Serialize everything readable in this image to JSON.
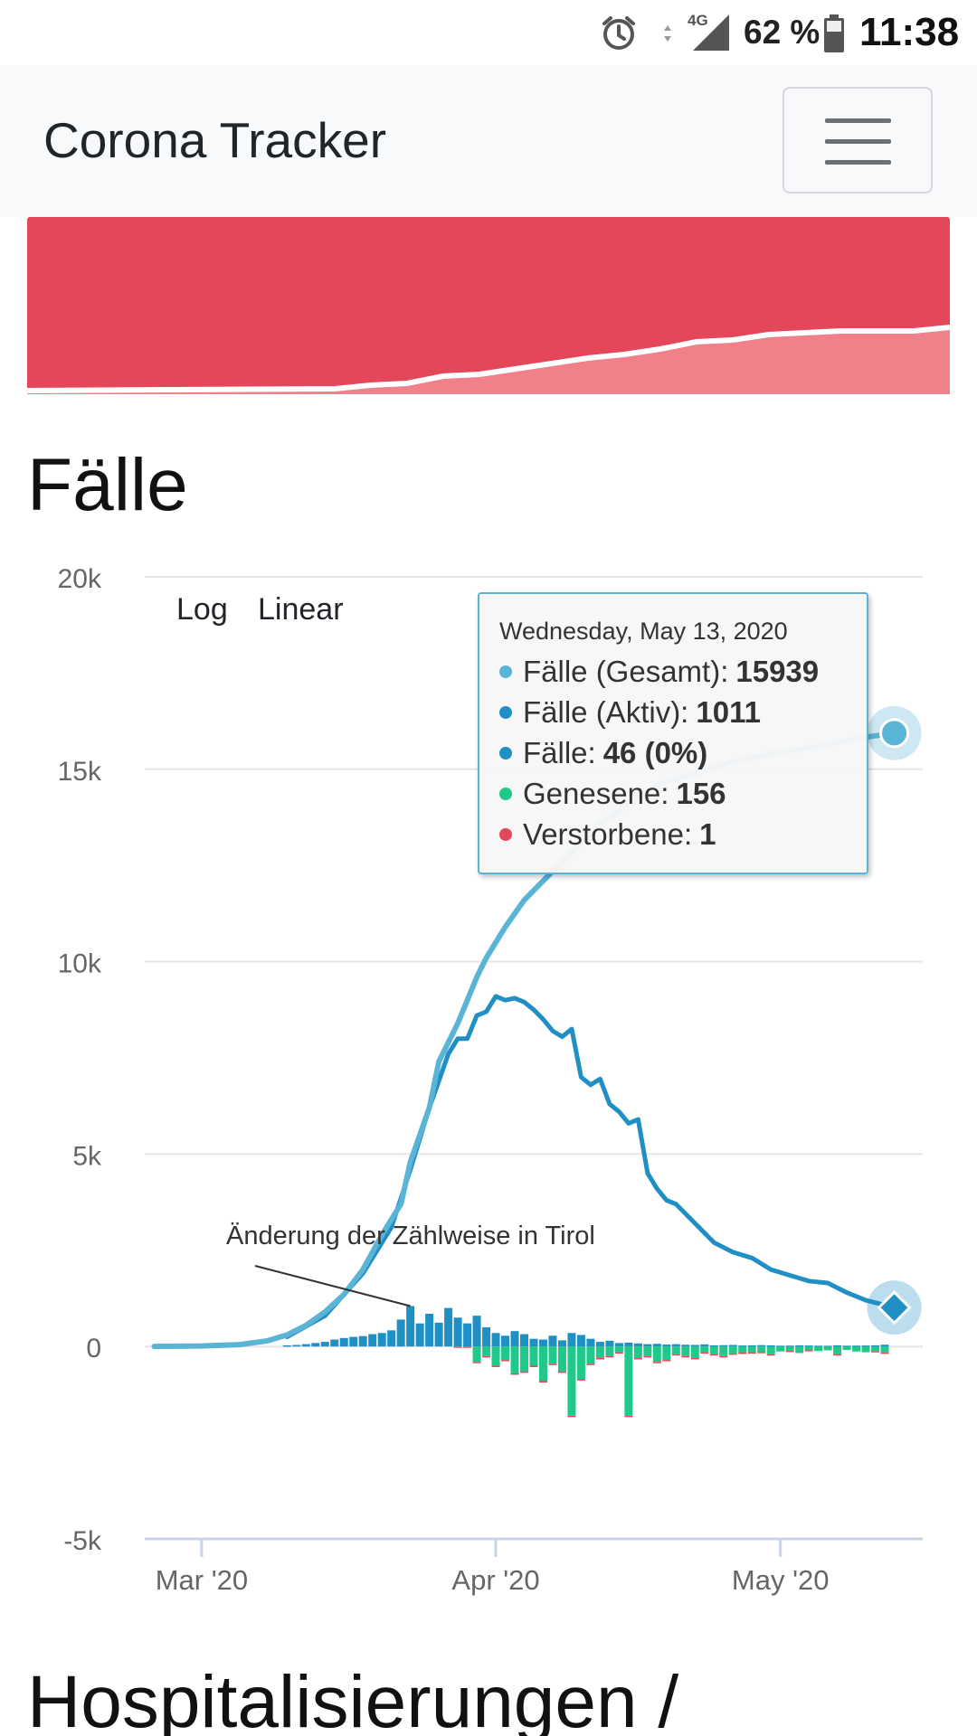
{
  "status_bar": {
    "network": "4G",
    "battery": "62 %",
    "time": "11:38"
  },
  "app": {
    "title": "Corona Tracker"
  },
  "sections": {
    "cases_title": "Fälle",
    "next_title": "Hospitalisierungen /"
  },
  "scale_buttons": {
    "log": "Log",
    "linear": "Linear"
  },
  "colors": {
    "total": "#5ab4d6",
    "active": "#1f8fc4",
    "new": "#1f8fc4",
    "recovered": "#20c98a",
    "deaths": "#e5475a",
    "banner": "#e5475a"
  },
  "tooltip": {
    "date": "Wednesday, May 13, 2020",
    "rows": [
      {
        "label": "Fälle (Gesamt):",
        "value": "15939"
      },
      {
        "label": "Fälle (Aktiv):",
        "value": "1011"
      },
      {
        "label": "Fälle:",
        "value": "46 (0%)"
      },
      {
        "label": "Genesene:",
        "value": "156"
      },
      {
        "label": "Verstorbene:",
        "value": "1"
      }
    ]
  },
  "chart_data": {
    "type": "line",
    "title": "",
    "xlabel": "",
    "ylabel": "",
    "ylim": [
      -5000,
      20000
    ],
    "yticks": [
      "20k",
      "15k",
      "10k",
      "5k",
      "0",
      "-5k"
    ],
    "xticks": [
      {
        "date": "2020-03-01",
        "label": "Mar '20"
      },
      {
        "date": "2020-04-01",
        "label": "Apr '20"
      },
      {
        "date": "2020-05-01",
        "label": "May '20"
      }
    ],
    "annotation": {
      "text": "Änderung der Zählweise in Tirol",
      "date": "2020-03-23",
      "value": 1050
    },
    "series": [
      {
        "name": "Fälle (Gesamt)",
        "type": "line",
        "points": [
          [
            "2020-02-25",
            2
          ],
          [
            "2020-03-01",
            14
          ],
          [
            "2020-03-05",
            50
          ],
          [
            "2020-03-08",
            150
          ],
          [
            "2020-03-10",
            300
          ],
          [
            "2020-03-12",
            550
          ],
          [
            "2020-03-14",
            900
          ],
          [
            "2020-03-16",
            1350
          ],
          [
            "2020-03-18",
            2000
          ],
          [
            "2020-03-20",
            2900
          ],
          [
            "2020-03-22",
            3700
          ],
          [
            "2020-03-23",
            4800
          ],
          [
            "2020-03-25",
            6200
          ],
          [
            "2020-03-26",
            7400
          ],
          [
            "2020-03-28",
            8400
          ],
          [
            "2020-03-29",
            9000
          ],
          [
            "2020-03-30",
            9600
          ],
          [
            "2020-03-31",
            10100
          ],
          [
            "2020-04-02",
            10900
          ],
          [
            "2020-04-04",
            11600
          ],
          [
            "2020-04-06",
            12100
          ],
          [
            "2020-04-08",
            12600
          ],
          [
            "2020-04-10",
            13100
          ],
          [
            "2020-04-12",
            13600
          ],
          [
            "2020-04-15",
            14100
          ],
          [
            "2020-04-18",
            14600
          ],
          [
            "2020-04-22",
            14900
          ],
          [
            "2020-04-26",
            15200
          ],
          [
            "2020-04-30",
            15400
          ],
          [
            "2020-05-05",
            15600
          ],
          [
            "2020-05-09",
            15800
          ],
          [
            "2020-05-13",
            15939
          ]
        ]
      },
      {
        "name": "Fälle (Aktiv)",
        "type": "line",
        "points": [
          [
            "2020-03-10",
            250
          ],
          [
            "2020-03-14",
            800
          ],
          [
            "2020-03-18",
            1900
          ],
          [
            "2020-03-21",
            3100
          ],
          [
            "2020-03-23",
            4600
          ],
          [
            "2020-03-25",
            6200
          ],
          [
            "2020-03-27",
            7600
          ],
          [
            "2020-03-28",
            8000
          ],
          [
            "2020-03-29",
            8000
          ],
          [
            "2020-03-30",
            8600
          ],
          [
            "2020-03-31",
            8700
          ],
          [
            "2020-04-01",
            9100
          ],
          [
            "2020-04-02",
            9000
          ],
          [
            "2020-04-03",
            9050
          ],
          [
            "2020-04-04",
            8950
          ],
          [
            "2020-04-05",
            8750
          ],
          [
            "2020-04-06",
            8500
          ],
          [
            "2020-04-07",
            8200
          ],
          [
            "2020-04-08",
            8050
          ],
          [
            "2020-04-09",
            8250
          ],
          [
            "2020-04-10",
            7000
          ],
          [
            "2020-04-11",
            6800
          ],
          [
            "2020-04-12",
            6950
          ],
          [
            "2020-04-13",
            6300
          ],
          [
            "2020-04-14",
            6100
          ],
          [
            "2020-04-15",
            5800
          ],
          [
            "2020-04-16",
            5900
          ],
          [
            "2020-04-17",
            4500
          ],
          [
            "2020-04-18",
            4100
          ],
          [
            "2020-04-19",
            3800
          ],
          [
            "2020-04-20",
            3700
          ],
          [
            "2020-04-22",
            3200
          ],
          [
            "2020-04-24",
            2700
          ],
          [
            "2020-04-26",
            2450
          ],
          [
            "2020-04-28",
            2300
          ],
          [
            "2020-04-30",
            2000
          ],
          [
            "2020-05-02",
            1850
          ],
          [
            "2020-05-04",
            1700
          ],
          [
            "2020-05-06",
            1650
          ],
          [
            "2020-05-08",
            1400
          ],
          [
            "2020-05-10",
            1200
          ],
          [
            "2020-05-13",
            1011
          ]
        ]
      },
      {
        "name": "Fälle",
        "type": "bar",
        "start": "2020-03-10",
        "values": [
          30,
          40,
          60,
          90,
          120,
          180,
          220,
          250,
          270,
          320,
          350,
          420,
          700,
          1050,
          600,
          850,
          620,
          1000,
          750,
          600,
          800,
          500,
          350,
          280,
          400,
          320,
          200,
          180,
          280,
          160,
          350,
          300,
          200,
          120,
          150,
          90,
          100,
          80,
          60,
          70,
          50,
          60,
          45,
          40,
          55,
          30,
          35,
          40,
          25,
          30,
          35,
          28,
          20,
          22,
          30,
          25,
          20,
          18,
          30,
          20,
          22,
          25,
          30,
          46
        ]
      },
      {
        "name": "Genesene",
        "type": "bar",
        "negative": true,
        "start": "2020-03-10",
        "values": [
          0,
          0,
          0,
          0,
          0,
          0,
          0,
          0,
          0,
          0,
          0,
          0,
          0,
          0,
          0,
          0,
          0,
          0,
          0,
          0,
          400,
          250,
          500,
          350,
          700,
          650,
          500,
          900,
          450,
          650,
          1800,
          850,
          450,
          300,
          250,
          150,
          1800,
          300,
          250,
          400,
          350,
          200,
          250,
          300,
          150,
          200,
          250,
          180,
          160,
          150,
          140,
          200,
          130,
          110,
          170,
          90,
          120,
          100,
          200,
          90,
          130,
          150,
          120,
          156
        ]
      },
      {
        "name": "Verstorbene",
        "type": "bar",
        "negative": true,
        "start": "2020-03-10",
        "values": [
          0,
          0,
          0,
          0,
          0,
          0,
          0,
          0,
          0,
          0,
          0,
          0,
          0,
          0,
          0,
          0,
          0,
          0,
          5,
          8,
          10,
          12,
          15,
          14,
          20,
          18,
          12,
          10,
          15,
          12,
          10,
          8,
          6,
          5,
          5,
          4,
          4,
          3,
          3,
          2,
          2,
          2,
          2,
          1,
          2,
          1,
          1,
          1,
          1,
          1,
          1,
          1,
          0,
          1,
          0,
          1,
          0,
          0,
          1,
          0,
          0,
          0,
          1,
          1
        ]
      }
    ]
  }
}
